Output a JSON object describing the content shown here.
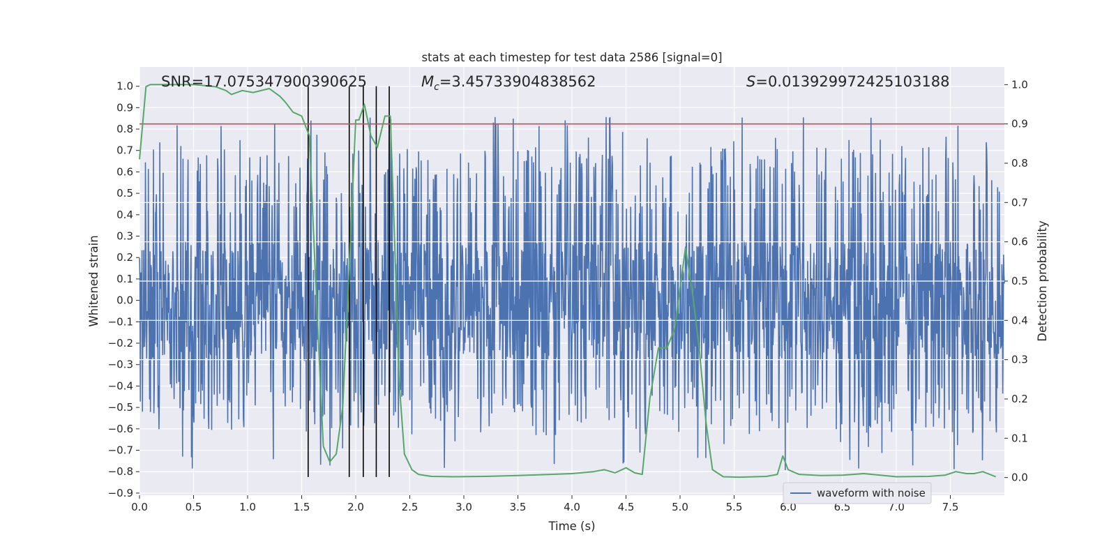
{
  "chart_data": {
    "type": "line",
    "title": "stats at each timestep for test data 2586 [signal=0]",
    "xlabel": "Time (s)",
    "ylabel_left": "Whitened strain",
    "ylabel_right": "Detection probability",
    "xlim": [
      0.0,
      8.0
    ],
    "ylim_left": [
      -0.91,
      1.09
    ],
    "ylim_right": [
      -0.045,
      1.045
    ],
    "x_ticks": [
      0.0,
      0.5,
      1.0,
      1.5,
      2.0,
      2.5,
      3.0,
      3.5,
      4.0,
      4.5,
      5.0,
      5.5,
      6.0,
      6.5,
      7.0,
      7.5
    ],
    "x_tick_labels": [
      "0.0",
      "0.5",
      "1.0",
      "1.5",
      "2.0",
      "2.5",
      "3.0",
      "3.5",
      "4.0",
      "4.5",
      "5.0",
      "5.5",
      "6.0",
      "6.5",
      "7.0",
      "7.5"
    ],
    "y_left_ticks": [
      -0.9,
      -0.8,
      -0.7,
      -0.6,
      -0.5,
      -0.4,
      -0.3,
      -0.2,
      -0.1,
      0.0,
      0.1,
      0.2,
      0.3,
      0.4,
      0.5,
      0.6,
      0.7,
      0.8,
      0.9,
      1.0
    ],
    "y_left_tick_labels": [
      "−0.9",
      "−0.8",
      "−0.7",
      "−0.6",
      "−0.5",
      "−0.4",
      "−0.3",
      "−0.2",
      "−0.1",
      "0.0",
      "0.1",
      "0.2",
      "0.3",
      "0.4",
      "0.5",
      "0.6",
      "0.7",
      "0.8",
      "0.9",
      "1.0"
    ],
    "y_right_ticks": [
      0.0,
      0.1,
      0.2,
      0.3,
      0.4,
      0.5,
      0.6,
      0.7,
      0.8,
      0.9,
      1.0
    ],
    "y_right_tick_labels": [
      "0.0",
      "0.1",
      "0.2",
      "0.3",
      "0.4",
      "0.5",
      "0.6",
      "0.7",
      "0.8",
      "0.9",
      "1.0"
    ],
    "right_axis_gridlines": [
      0.3,
      0.4,
      0.5,
      0.6,
      0.7
    ],
    "annotations": {
      "snr": "SNR=17.075347900390625",
      "mc_symbol": "M",
      "mc_sub": "c",
      "mc_value": "=3.45733904838562",
      "s_symbol": "S",
      "s_value": "=0.013929972425103188"
    },
    "legend": {
      "label": "waveform with noise",
      "placement": "lower-right"
    },
    "series": [
      {
        "name": "waveform with noise",
        "axis": "left",
        "color": "#4c72b0",
        "envelope": {
          "sampling_hz": 256,
          "typical_amplitude": 0.28,
          "positive_peak_range": [
            0.4,
            1.0
          ],
          "negative_peak_range": [
            -0.82,
            -0.35
          ]
        }
      },
      {
        "axis": "right",
        "color": "#55a868",
        "x": [
          0.0,
          0.06,
          0.1,
          0.2,
          0.3,
          0.5,
          0.7,
          0.8,
          0.85,
          0.95,
          1.05,
          1.2,
          1.3,
          1.35,
          1.42,
          1.5,
          1.57,
          1.63,
          1.7,
          1.76,
          1.82,
          1.88,
          1.95,
          2.0,
          2.03,
          2.08,
          2.14,
          2.2,
          2.27,
          2.32,
          2.36,
          2.4,
          2.45,
          2.52,
          2.58,
          2.7,
          2.9,
          3.2,
          3.5,
          3.8,
          4.0,
          4.2,
          4.3,
          4.4,
          4.5,
          4.58,
          4.65,
          4.72,
          4.8,
          4.88,
          4.95,
          5.05,
          5.12,
          5.18,
          5.24,
          5.3,
          5.4,
          5.55,
          5.8,
          5.9,
          5.95,
          6.0,
          6.1,
          6.3,
          6.5,
          6.7,
          7.0,
          7.3,
          7.45,
          7.55,
          7.65,
          7.72,
          7.8,
          7.92
        ],
        "y": [
          0.81,
          0.995,
          1.0,
          1.0,
          1.0,
          1.0,
          0.995,
          0.985,
          0.975,
          0.985,
          0.98,
          0.99,
          0.97,
          0.955,
          0.93,
          0.92,
          0.87,
          0.5,
          0.08,
          0.04,
          0.06,
          0.18,
          0.6,
          0.91,
          0.91,
          0.95,
          0.87,
          0.84,
          0.92,
          0.92,
          0.6,
          0.25,
          0.06,
          0.02,
          0.008,
          0.003,
          0.002,
          0.003,
          0.005,
          0.008,
          0.01,
          0.015,
          0.02,
          0.012,
          0.025,
          0.012,
          0.008,
          0.2,
          0.33,
          0.33,
          0.38,
          0.585,
          0.46,
          0.32,
          0.14,
          0.02,
          0.002,
          0.001,
          0.003,
          0.008,
          0.055,
          0.02,
          0.008,
          0.005,
          0.006,
          0.01,
          0.002,
          0.003,
          0.006,
          0.015,
          0.01,
          0.01,
          0.015,
          0.002
        ]
      },
      {
        "axis": "right",
        "color": "#c44e52",
        "kind": "horizontal-threshold",
        "y": 0.9
      }
    ],
    "vertical_markers": [
      1.56,
      1.94,
      2.07,
      2.19,
      2.31
    ]
  }
}
